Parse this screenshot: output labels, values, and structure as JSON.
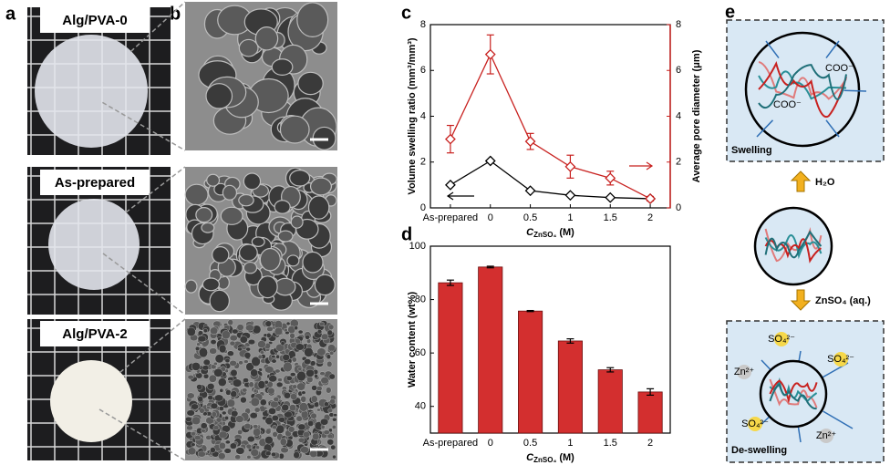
{
  "panels": {
    "a": {
      "letter": "a",
      "labels": [
        "Alg/PVA-0",
        "As-prepared",
        "Alg/PVA-2"
      ]
    },
    "b": {
      "letter": "b"
    },
    "e": {
      "letter": "e",
      "top_label": "Swelling",
      "bottom_label": "De-swelling",
      "up_reagent": "H₂O",
      "down_reagent": "ZnSO₄ (aq.)",
      "carboxylate": "COO⁻",
      "sulfate": "SO₄²⁻",
      "zinc": "Zn²⁺"
    }
  },
  "chart_data": [
    {
      "type": "line",
      "label": "c",
      "categories": [
        "As-prepared",
        "0",
        "0.5",
        "1",
        "1.5",
        "2"
      ],
      "xlabel": {
        "symbol": "C",
        "subscript": "ZnSO₄",
        "unit": " (M)"
      },
      "ylabel": "Volume swelling ratio (mm³/mm³)",
      "y2label": "Average pore diameter (μm)",
      "ylim": [
        0,
        8
      ],
      "yticks": [
        0,
        2,
        4,
        6,
        8
      ],
      "y2lim": [
        0,
        8
      ],
      "y2ticks": [
        0,
        2,
        4,
        6,
        8
      ],
      "series": [
        {
          "color": "#000000",
          "values": [
            1.0,
            2.05,
            0.75,
            0.55,
            0.45,
            0.4
          ]
        },
        {
          "color": "#c8211f",
          "axis": "y2",
          "values": [
            3.0,
            6.7,
            2.9,
            1.8,
            1.3,
            0.4
          ],
          "errors": [
            0.6,
            0.85,
            0.35,
            0.5,
            0.3,
            0.1
          ]
        }
      ]
    },
    {
      "type": "bar",
      "label": "d",
      "categories": [
        "As-prepared",
        "0",
        "0.5",
        "1",
        "1.5",
        "2"
      ],
      "xlabel": {
        "symbol": "C",
        "subscript": "ZnSO₄",
        "unit": " (M)"
      },
      "ylabel": "Water content (wt%)",
      "ylim": [
        30,
        100
      ],
      "yticks": [
        40,
        60,
        80,
        100
      ],
      "color": "#d32f2f",
      "values": [
        86.3,
        92.2,
        75.7,
        64.5,
        53.7,
        45.4
      ],
      "errors": [
        1.0,
        0.3,
        0.2,
        0.8,
        0.8,
        1.2
      ]
    }
  ]
}
